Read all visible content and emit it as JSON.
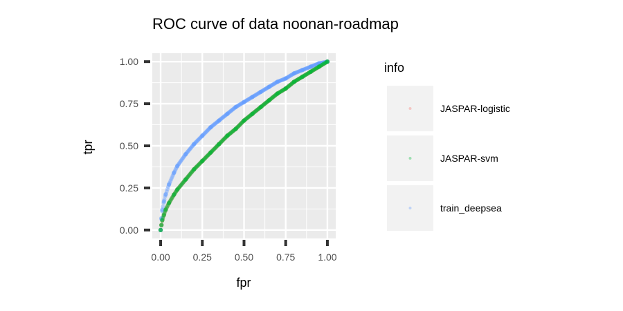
{
  "chart_data": {
    "type": "scatter",
    "title": "ROC curve of data noonan-roadmap",
    "xlabel": "fpr",
    "ylabel": "tpr",
    "xlim": [
      -0.05,
      1.05
    ],
    "ylim": [
      -0.05,
      1.05
    ],
    "x_ticks": [
      0,
      0.25,
      0.5,
      0.75,
      1
    ],
    "y_ticks": [
      0,
      0.25,
      0.5,
      0.75,
      1
    ],
    "x_tick_labels": [
      "0.00",
      "0.25",
      "0.50",
      "0.75",
      "1.00"
    ],
    "y_tick_labels": [
      "0.00",
      "0.25",
      "0.50",
      "0.75",
      "1.00"
    ],
    "grid": true,
    "legend": {
      "title": "info",
      "placement": "right"
    },
    "series": [
      {
        "name": "JASPAR-logistic",
        "color": "#F8766D",
        "x": [
          0,
          0.005,
          0.01,
          0.02,
          0.03,
          0.05,
          0.08,
          0.1,
          0.15,
          0.2,
          0.25,
          0.3,
          0.35,
          0.4,
          0.45,
          0.5,
          0.55,
          0.6,
          0.65,
          0.7,
          0.75,
          0.8,
          0.85,
          0.9,
          0.95,
          1
        ],
        "y": [
          0,
          0.03,
          0.06,
          0.09,
          0.12,
          0.16,
          0.21,
          0.24,
          0.3,
          0.36,
          0.41,
          0.46,
          0.51,
          0.56,
          0.6,
          0.65,
          0.69,
          0.73,
          0.77,
          0.81,
          0.84,
          0.88,
          0.91,
          0.94,
          0.97,
          1
        ]
      },
      {
        "name": "JASPAR-svm",
        "color": "#00BA38",
        "x": [
          0,
          0.005,
          0.01,
          0.02,
          0.03,
          0.05,
          0.08,
          0.1,
          0.15,
          0.2,
          0.25,
          0.3,
          0.35,
          0.4,
          0.45,
          0.5,
          0.55,
          0.6,
          0.65,
          0.7,
          0.75,
          0.8,
          0.85,
          0.9,
          0.95,
          1
        ],
        "y": [
          0,
          0.03,
          0.06,
          0.09,
          0.12,
          0.16,
          0.21,
          0.24,
          0.3,
          0.36,
          0.41,
          0.46,
          0.51,
          0.56,
          0.6,
          0.65,
          0.69,
          0.73,
          0.77,
          0.81,
          0.84,
          0.88,
          0.91,
          0.94,
          0.97,
          1
        ]
      },
      {
        "name": "train_deepsea",
        "color": "#619CFF",
        "x": [
          0,
          0.005,
          0.01,
          0.02,
          0.03,
          0.05,
          0.08,
          0.1,
          0.15,
          0.2,
          0.25,
          0.3,
          0.35,
          0.4,
          0.45,
          0.5,
          0.55,
          0.6,
          0.65,
          0.7,
          0.75,
          0.8,
          0.85,
          0.9,
          0.95,
          1
        ],
        "y": [
          0,
          0.07,
          0.12,
          0.17,
          0.21,
          0.27,
          0.34,
          0.38,
          0.45,
          0.51,
          0.56,
          0.61,
          0.65,
          0.69,
          0.73,
          0.76,
          0.79,
          0.82,
          0.85,
          0.88,
          0.9,
          0.93,
          0.95,
          0.97,
          0.99,
          1
        ]
      }
    ]
  }
}
